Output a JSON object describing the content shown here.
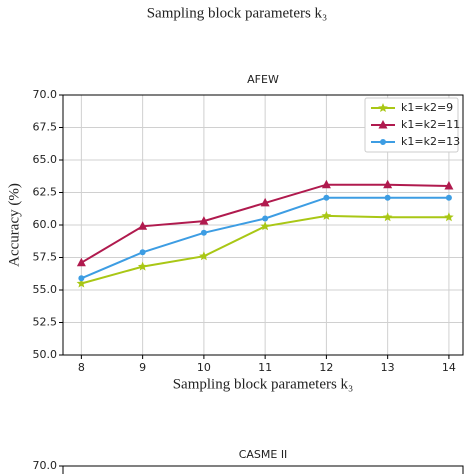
{
  "chart_data": [
    {
      "type": "line",
      "xlabel": "Sampling block parameters  k₃"
    },
    {
      "type": "line",
      "title": "AFEW",
      "xlabel": "Sampling block parameters  k₃",
      "ylabel": "Accuracy (%)",
      "x": [
        8,
        9,
        10,
        11,
        12,
        13,
        14
      ],
      "xlim": [
        7.7,
        14.23
      ],
      "xticks": [
        8,
        9,
        10,
        11,
        12,
        13,
        14
      ],
      "ylim": [
        50,
        70
      ],
      "yticks": [
        {
          "value": 50,
          "label": "50.0"
        },
        {
          "value": 52.5,
          "label": "52.5"
        },
        {
          "value": 55,
          "label": "55.0"
        },
        {
          "value": 57.5,
          "label": "57.5"
        },
        {
          "value": 60,
          "label": "60.0"
        },
        {
          "value": 62.5,
          "label": "62.5"
        },
        {
          "value": 65,
          "label": "65.0"
        },
        {
          "value": 67.5,
          "label": "67.5"
        },
        {
          "value": 70,
          "label": "70.0"
        }
      ],
      "grid": true,
      "legend": "upper right",
      "series": [
        {
          "name": "k1=k2=9",
          "color": "#a9c715",
          "marker": "star",
          "values": [
            55.5,
            56.8,
            57.6,
            59.9,
            60.7,
            60.6,
            60.6
          ]
        },
        {
          "name": "k1=k2=11",
          "color": "#b01a4e",
          "marker": "triangle",
          "values": [
            57.1,
            59.9,
            60.3,
            61.7,
            63.1,
            63.1,
            63.0
          ]
        },
        {
          "name": "k1=k2=13",
          "color": "#3d9de3",
          "marker": "circle",
          "values": [
            55.9,
            57.9,
            59.4,
            60.5,
            62.1,
            62.1,
            62.1
          ]
        }
      ]
    },
    {
      "type": "line",
      "title": "CASME II",
      "yticks": [
        {
          "value": 70,
          "label": "70.0"
        }
      ]
    }
  ]
}
